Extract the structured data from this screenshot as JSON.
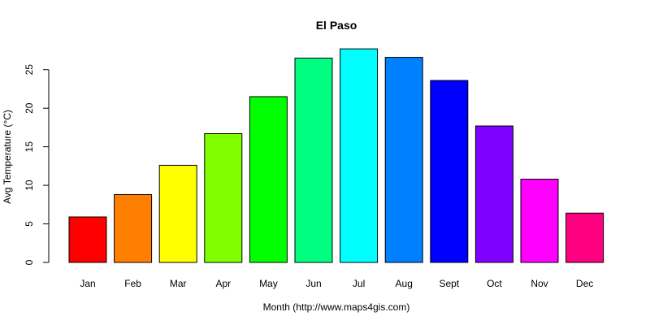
{
  "chart_data": {
    "type": "bar",
    "title": "El Paso",
    "xlabel": "Month (http://www.maps4gis.com)",
    "ylabel": "Avg Temperature (°C)",
    "categories": [
      "Jan",
      "Feb",
      "Mar",
      "Apr",
      "May",
      "Jun",
      "Jul",
      "Aug",
      "Sept",
      "Oct",
      "Nov",
      "Dec"
    ],
    "values": [
      5.9,
      8.8,
      12.6,
      16.7,
      21.5,
      26.5,
      27.7,
      26.6,
      23.6,
      17.7,
      10.8,
      6.4
    ],
    "colors": [
      "#FF0000",
      "#FF8000",
      "#FFFF00",
      "#80FF00",
      "#00FF00",
      "#00FF80",
      "#00FFFF",
      "#0080FF",
      "#0000FF",
      "#8000FF",
      "#FF00FF",
      "#FF0080"
    ],
    "yticks": [
      0,
      5,
      10,
      15,
      20,
      25
    ],
    "ylim": [
      0,
      27.7
    ],
    "grid": false,
    "legend": "none"
  }
}
